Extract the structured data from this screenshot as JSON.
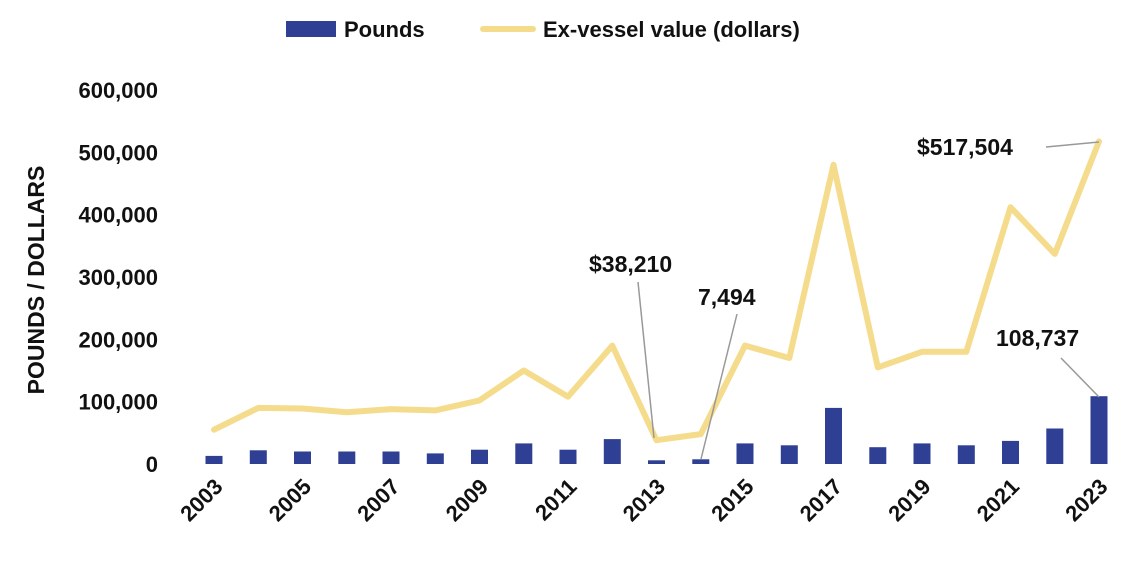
{
  "chart_data": {
    "type": "bar",
    "title": "",
    "xlabel": "",
    "ylabel": "POUNDS / DOLLARS",
    "ylim": [
      0,
      600000
    ],
    "yticks": [
      0,
      100000,
      200000,
      300000,
      400000,
      500000,
      600000
    ],
    "ytick_labels": [
      "0",
      "100,000",
      "200,000",
      "300,000",
      "400,000",
      "500,000",
      "600,000"
    ],
    "grid": false,
    "legend_position": "top",
    "categories": [
      "2003",
      "2004",
      "2005",
      "2006",
      "2007",
      "2008",
      "2009",
      "2010",
      "2011",
      "2012",
      "2013",
      "2014",
      "2015",
      "2016",
      "2017",
      "2018",
      "2019",
      "2020",
      "2021",
      "2022",
      "2023"
    ],
    "xtick_labels": [
      "2003",
      "2005",
      "2007",
      "2009",
      "2011",
      "2013",
      "2015",
      "2017",
      "2019",
      "2021",
      "2023"
    ],
    "series": [
      {
        "name": "Pounds",
        "type": "bar",
        "color": "#2e3f94",
        "values": [
          13000,
          22000,
          20000,
          20000,
          20000,
          17000,
          23000,
          33000,
          23000,
          40000,
          6000,
          7494,
          33000,
          30000,
          90000,
          27000,
          33000,
          30000,
          37000,
          57000,
          108737
        ]
      },
      {
        "name": "Ex-vessel value (dollars)",
        "type": "line",
        "color": "#f5dc8c",
        "values": [
          55000,
          90000,
          89000,
          83000,
          88000,
          86000,
          102000,
          150000,
          108000,
          190000,
          38210,
          48000,
          190000,
          170000,
          480000,
          155000,
          180000,
          180000,
          412000,
          337000,
          517504
        ]
      }
    ],
    "annotations": [
      {
        "text": "$38,210",
        "year": "2013",
        "series": 1
      },
      {
        "text": "7,494",
        "year": "2014",
        "series": 0
      },
      {
        "text": "$517,504",
        "year": "2023",
        "series": 1
      },
      {
        "text": "108,737",
        "year": "2023",
        "series": 0
      }
    ]
  }
}
